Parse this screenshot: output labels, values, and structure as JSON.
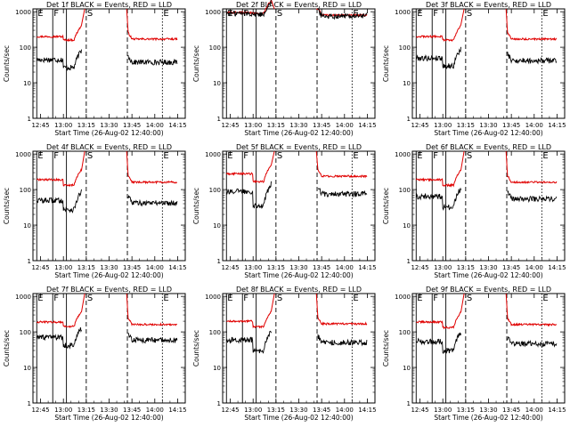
{
  "chart_data": [
    {
      "type": "line",
      "title": "Det 1f BLACK = Events, RED = LLD",
      "events_level": 45,
      "lld_level": 200,
      "events_dip": 0.6,
      "lld_dip": 0.8
    },
    {
      "type": "line",
      "title": "Det 2f BLACK = Events, RED = LLD",
      "events_level": 900,
      "lld_level": 950,
      "events_dip": 0.95,
      "lld_dip": 0.95
    },
    {
      "type": "line",
      "title": "Det 3f BLACK = Events, RED = LLD",
      "events_level": 50,
      "lld_level": 200,
      "events_dip": 0.6,
      "lld_dip": 0.8
    },
    {
      "type": "line",
      "title": "Det 4f BLACK = Events, RED = LLD",
      "events_level": 50,
      "lld_level": 190,
      "events_dip": 0.55,
      "lld_dip": 0.7
    },
    {
      "type": "line",
      "title": "Det 5f BLACK = Events, RED = LLD",
      "events_level": 90,
      "lld_level": 280,
      "events_dip": 0.4,
      "lld_dip": 0.6
    },
    {
      "type": "line",
      "title": "Det 6f BLACK = Events, RED = LLD",
      "events_level": 65,
      "lld_level": 190,
      "events_dip": 0.5,
      "lld_dip": 0.7
    },
    {
      "type": "line",
      "title": "Det 7f BLACK = Events, RED = LLD",
      "events_level": 70,
      "lld_level": 190,
      "events_dip": 0.6,
      "lld_dip": 0.75
    },
    {
      "type": "line",
      "title": "Det 8f BLACK = Events, RED = LLD",
      "events_level": 60,
      "lld_level": 200,
      "events_dip": 0.5,
      "lld_dip": 0.7
    },
    {
      "type": "line",
      "title": "Det 9f BLACK = Events, RED = LLD",
      "events_level": 55,
      "lld_level": 190,
      "events_dip": 0.55,
      "lld_dip": 0.7
    }
  ],
  "shared": {
    "xlabel": "Start Time (26-Aug-02 12:40:00)",
    "ylabel": "Counts/sec",
    "x_ticks": [
      "12:45",
      "13:00",
      "13:15",
      "13:30",
      "13:45",
      "14:00",
      "14:15"
    ],
    "x_tick_minutes": [
      5,
      20,
      35,
      50,
      65,
      80,
      95
    ],
    "x_range_minutes": [
      0,
      100
    ],
    "y_ticks": [
      "1",
      "10",
      "100",
      "1000"
    ],
    "y_tick_values": [
      1,
      10,
      100,
      1000
    ],
    "ylim": [
      1,
      1200
    ],
    "y_scale": "log",
    "markers": [
      {
        "label": "E",
        "minute": 2.5,
        "style": "solid"
      },
      {
        "label": "F",
        "minute": 13,
        "style": "solid"
      },
      {
        "label": "",
        "minute": 22,
        "style": "solid"
      },
      {
        "label": "S",
        "minute": 35,
        "style": "dashed"
      },
      {
        "label": "",
        "minute": 62,
        "style": "dashed"
      },
      {
        "label": "E",
        "minute": 85,
        "style": "dotted"
      }
    ],
    "gap_minutes": [
      35,
      62
    ],
    "colors": {
      "events": "#000000",
      "lld": "#e00000",
      "axes": "#000000"
    }
  }
}
